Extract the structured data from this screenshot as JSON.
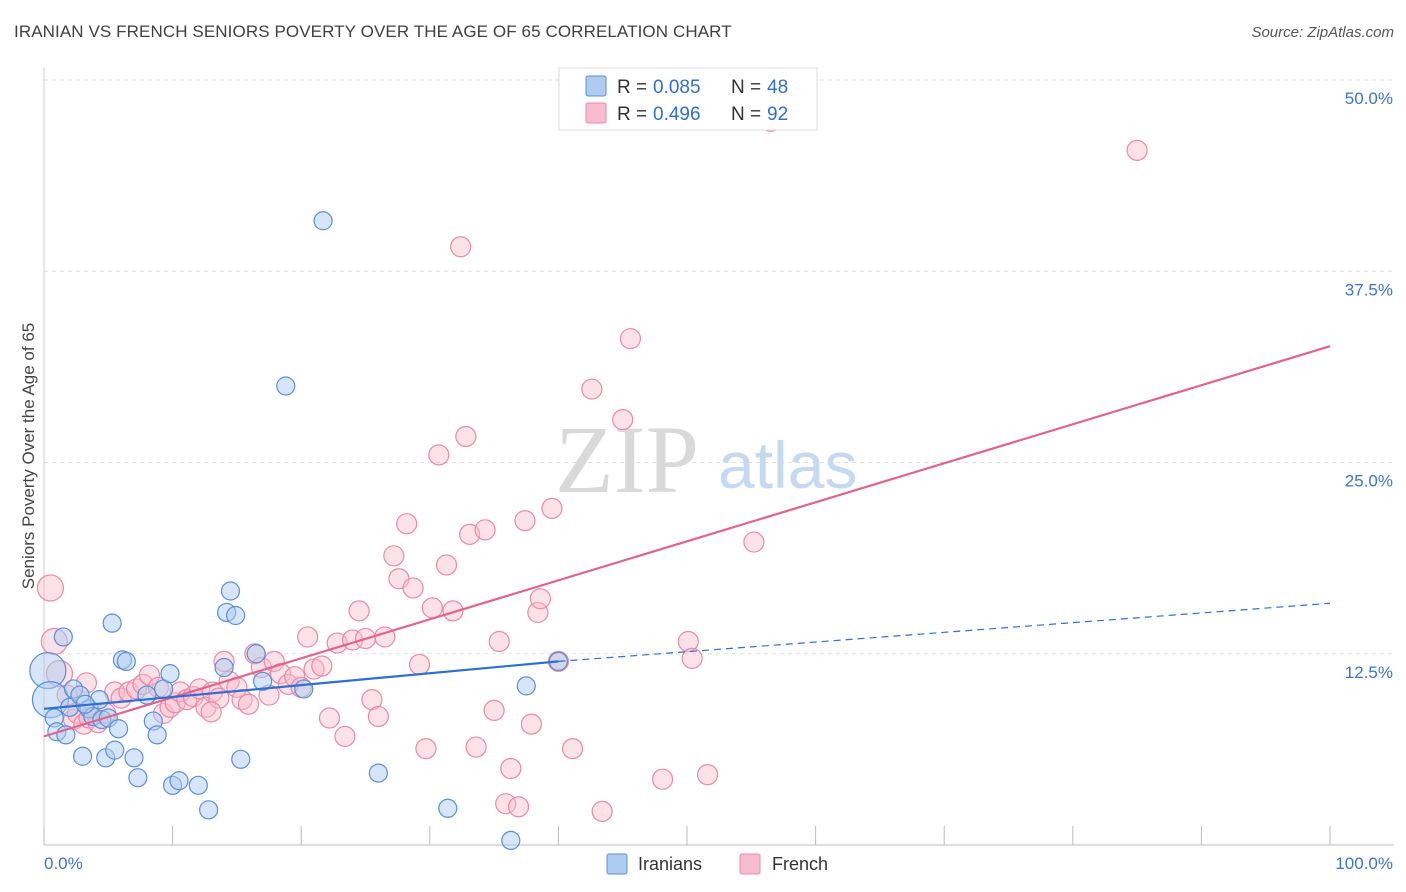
{
  "header": {
    "title": "IRANIAN VS FRENCH SENIORS POVERTY OVER THE AGE OF 65 CORRELATION CHART",
    "source": "Source: ZipAtlas.com"
  },
  "watermark": {
    "zip": "ZIP",
    "atlas": "atlas"
  },
  "legend": {
    "iranians": {
      "r_label": "R =",
      "r_value": "0.085",
      "n_label": "N =",
      "n_value": "48"
    },
    "french": {
      "r_label": "R =",
      "r_value": "0.496",
      "n_label": "N =",
      "n_value": "92"
    }
  },
  "bottom_legend": {
    "iranians": "Iranians",
    "french": "French"
  },
  "colors": {
    "iranians_fill": "#aecbf0",
    "iranians_stroke": "#5b8fd6",
    "iranians_line": "#2f6fd0",
    "french_fill": "#f7bccd",
    "french_stroke": "#e88aa8",
    "french_line": "#e0648f",
    "grid": "#dddddd",
    "tick_text": "#3d74c9"
  },
  "chart_data": {
    "type": "scatter",
    "title": "IRANIAN VS FRENCH SENIORS POVERTY OVER THE AGE OF 65 CORRELATION CHART",
    "xlabel": "",
    "ylabel": "Seniors Poverty Over the Age of 65",
    "xlim": [
      0,
      100
    ],
    "ylim": [
      0,
      50
    ],
    "x_tick_labels": [
      "0.0%",
      "100.0%"
    ],
    "y_ticks": [
      12.5,
      25.0,
      37.5,
      50.0
    ],
    "y_tick_labels": [
      "12.5%",
      "25.0%",
      "37.5%",
      "50.0%"
    ],
    "grid": true,
    "series": [
      {
        "name": "Iranians",
        "r": 0.085,
        "n": 48,
        "trend": {
          "x_solid": [
            0,
            40
          ],
          "x_dashed": [
            40,
            100
          ],
          "y_at_0": 8.9,
          "y_at_40": 12.0,
          "y_at_100": 15.8
        },
        "points": [
          [
            0.3,
            11.4
          ],
          [
            0.5,
            9.5
          ],
          [
            0.8,
            8.3
          ],
          [
            1.5,
            13.6
          ],
          [
            1.0,
            7.4
          ],
          [
            1.7,
            7.2
          ],
          [
            2.0,
            9.0
          ],
          [
            2.3,
            10.2
          ],
          [
            2.8,
            9.8
          ],
          [
            3.0,
            5.8
          ],
          [
            3.5,
            8.9
          ],
          [
            3.8,
            8.4
          ],
          [
            4.3,
            9.5
          ],
          [
            4.5,
            8.2
          ],
          [
            4.8,
            5.7
          ],
          [
            5.0,
            8.3
          ],
          [
            5.3,
            14.5
          ],
          [
            5.5,
            6.2
          ],
          [
            5.8,
            7.6
          ],
          [
            6.1,
            12.1
          ],
          [
            6.4,
            12.0
          ],
          [
            7.0,
            5.7
          ],
          [
            7.3,
            4.4
          ],
          [
            8.0,
            9.8
          ],
          [
            8.5,
            8.1
          ],
          [
            8.8,
            7.2
          ],
          [
            9.3,
            10.2
          ],
          [
            9.8,
            11.2
          ],
          [
            10.0,
            3.9
          ],
          [
            10.5,
            4.2
          ],
          [
            12.0,
            3.9
          ],
          [
            12.8,
            2.3
          ],
          [
            14.2,
            15.2
          ],
          [
            14.5,
            16.6
          ],
          [
            14.9,
            15.0
          ],
          [
            15.3,
            5.6
          ],
          [
            16.5,
            12.5
          ],
          [
            17.0,
            10.7
          ],
          [
            18.8,
            30.0
          ],
          [
            20.2,
            10.2
          ],
          [
            21.7,
            40.8
          ],
          [
            26.0,
            4.7
          ],
          [
            31.4,
            2.4
          ],
          [
            36.3,
            0.3
          ],
          [
            37.5,
            10.4
          ],
          [
            40.0,
            12.0
          ],
          [
            14.0,
            11.6
          ],
          [
            3.2,
            9.2
          ]
        ]
      },
      {
        "name": "French",
        "r": 0.496,
        "n": 92,
        "trend": {
          "x": [
            0,
            100
          ],
          "y_at_0": 7.1,
          "y_at_100": 32.6
        },
        "points": [
          [
            0.5,
            16.8
          ],
          [
            0.8,
            13.3
          ],
          [
            1.2,
            11.2
          ],
          [
            1.8,
            9.8
          ],
          [
            2.3,
            8.2
          ],
          [
            2.6,
            8.6
          ],
          [
            3.1,
            7.9
          ],
          [
            3.5,
            8.3
          ],
          [
            4.2,
            8.0
          ],
          [
            4.8,
            8.6
          ],
          [
            5.5,
            10.0
          ],
          [
            6.0,
            9.6
          ],
          [
            6.6,
            10.0
          ],
          [
            7.2,
            10.2
          ],
          [
            7.7,
            10.5
          ],
          [
            8.2,
            11.1
          ],
          [
            8.9,
            10.3
          ],
          [
            9.3,
            8.6
          ],
          [
            9.8,
            9.0
          ],
          [
            10.2,
            9.3
          ],
          [
            10.6,
            10.0
          ],
          [
            11.1,
            9.5
          ],
          [
            11.6,
            9.7
          ],
          [
            12.1,
            10.2
          ],
          [
            12.6,
            9.0
          ],
          [
            13.1,
            10.0
          ],
          [
            13.6,
            9.6
          ],
          [
            14.0,
            12.0
          ],
          [
            14.4,
            10.7
          ],
          [
            15.0,
            10.3
          ],
          [
            15.4,
            9.5
          ],
          [
            15.9,
            9.2
          ],
          [
            16.4,
            12.5
          ],
          [
            16.9,
            11.6
          ],
          [
            17.5,
            9.8
          ],
          [
            17.9,
            12.0
          ],
          [
            18.4,
            11.2
          ],
          [
            19.0,
            10.5
          ],
          [
            19.5,
            11.0
          ],
          [
            20.0,
            10.3
          ],
          [
            20.5,
            13.6
          ],
          [
            21.0,
            11.5
          ],
          [
            21.6,
            11.7
          ],
          [
            22.2,
            8.3
          ],
          [
            22.8,
            13.2
          ],
          [
            23.4,
            7.1
          ],
          [
            24.0,
            13.4
          ],
          [
            24.5,
            15.3
          ],
          [
            25.0,
            13.5
          ],
          [
            25.5,
            9.5
          ],
          [
            26.0,
            8.4
          ],
          [
            26.5,
            13.6
          ],
          [
            27.2,
            18.9
          ],
          [
            27.6,
            17.4
          ],
          [
            28.2,
            21.0
          ],
          [
            28.7,
            16.8
          ],
          [
            29.2,
            11.8
          ],
          [
            29.7,
            6.3
          ],
          [
            30.2,
            15.5
          ],
          [
            30.7,
            25.5
          ],
          [
            31.3,
            18.3
          ],
          [
            31.8,
            15.3
          ],
          [
            32.4,
            39.1
          ],
          [
            32.8,
            26.7
          ],
          [
            33.1,
            20.3
          ],
          [
            33.6,
            6.4
          ],
          [
            34.3,
            20.6
          ],
          [
            35.0,
            8.8
          ],
          [
            35.4,
            13.3
          ],
          [
            35.9,
            2.7
          ],
          [
            36.3,
            5.0
          ],
          [
            36.9,
            2.5
          ],
          [
            37.4,
            21.2
          ],
          [
            37.9,
            7.9
          ],
          [
            38.4,
            15.2
          ],
          [
            38.6,
            16.1
          ],
          [
            39.5,
            22.0
          ],
          [
            40.0,
            12.0
          ],
          [
            41.1,
            6.3
          ],
          [
            42.6,
            29.8
          ],
          [
            43.4,
            2.2
          ],
          [
            45.0,
            27.8
          ],
          [
            45.6,
            33.1
          ],
          [
            48.1,
            4.3
          ],
          [
            50.1,
            13.3
          ],
          [
            50.4,
            12.2
          ],
          [
            51.6,
            4.6
          ],
          [
            55.2,
            19.8
          ],
          [
            56.5,
            47.3
          ],
          [
            85.0,
            45.4
          ],
          [
            3.3,
            10.6
          ],
          [
            13.0,
            8.7
          ]
        ]
      }
    ]
  }
}
